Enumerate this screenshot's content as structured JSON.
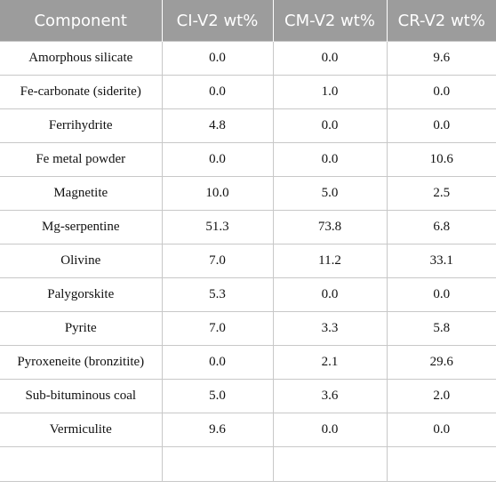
{
  "table": {
    "headers": [
      "Component",
      "CI-V2 wt%",
      "CM-V2 wt%",
      "CR-V2 wt%"
    ],
    "rows": [
      [
        "Amorphous silicate",
        "0.0",
        "0.0",
        "9.6"
      ],
      [
        "Fe-carbonate (siderite)",
        "0.0",
        "1.0",
        "0.0"
      ],
      [
        "Ferrihydrite",
        "4.8",
        "0.0",
        "0.0"
      ],
      [
        "Fe metal powder",
        "0.0",
        "0.0",
        "10.6"
      ],
      [
        "Magnetite",
        "10.0",
        "5.0",
        "2.5"
      ],
      [
        "Mg-serpentine",
        "51.3",
        "73.8",
        "6.8"
      ],
      [
        "Olivine",
        "7.0",
        "11.2",
        "33.1"
      ],
      [
        "Palygorskite",
        "5.3",
        "0.0",
        "0.0"
      ],
      [
        "Pyrite",
        "7.0",
        "3.3",
        "5.8"
      ],
      [
        "Pyroxeneite (bronzitite)",
        "0.0",
        "2.1",
        "29.6"
      ],
      [
        "Sub-bituminous coal",
        "5.0",
        "3.6",
        "2.0"
      ],
      [
        "Vermiculite",
        "9.6",
        "0.0",
        "0.0"
      ],
      [
        "",
        "",
        "",
        ""
      ]
    ]
  },
  "colors": {
    "header_background": "#9c9c9c",
    "header_text": "#ffffff",
    "grid_line": "#c8c8c8"
  }
}
